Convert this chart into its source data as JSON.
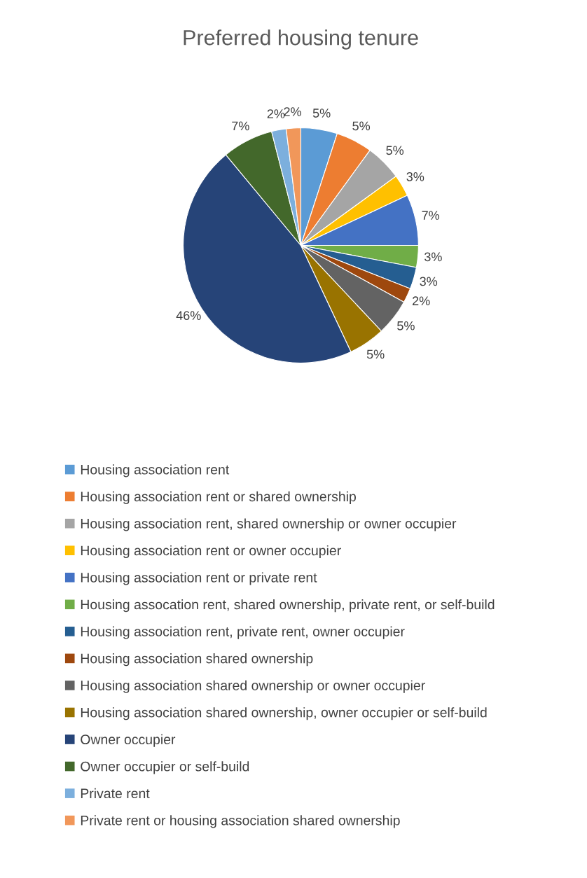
{
  "chart_data": {
    "type": "pie",
    "title": "Preferred housing tenure",
    "categories": [
      "Housing association rent",
      "Housing association rent or shared ownership",
      "Housing association rent, shared ownership or owner occupier",
      "Housing association rent or owner occupier",
      "Housing association rent or private rent",
      "Housing assocation rent, shared ownership, private rent, or self-build",
      "Housing association rent, private rent, owner occupier",
      "Housing association shared ownership",
      "Housing association shared ownership or owner occupier",
      "Housing association shared ownership, owner occupier or self-build",
      "Owner occupier",
      "Owner occupier or self-build",
      "Private rent",
      "Private rent or housing association shared ownership"
    ],
    "values": [
      5,
      5,
      5,
      3,
      7,
      3,
      3,
      2,
      5,
      5,
      46,
      7,
      2,
      2
    ],
    "value_labels": [
      "5%",
      "5%",
      "5%",
      "3%",
      "7%",
      "3%",
      "3%",
      "2%",
      "5%",
      "5%",
      "46%",
      "7%",
      "2%",
      "2%"
    ],
    "colors": [
      "#5b9bd5",
      "#ed7d31",
      "#a5a5a5",
      "#ffc000",
      "#4472c4",
      "#70ad47",
      "#255e91",
      "#9e480e",
      "#636363",
      "#997300",
      "#264478",
      "#43682b",
      "#7cafdd",
      "#f1975a"
    ],
    "legend": "bottom"
  }
}
